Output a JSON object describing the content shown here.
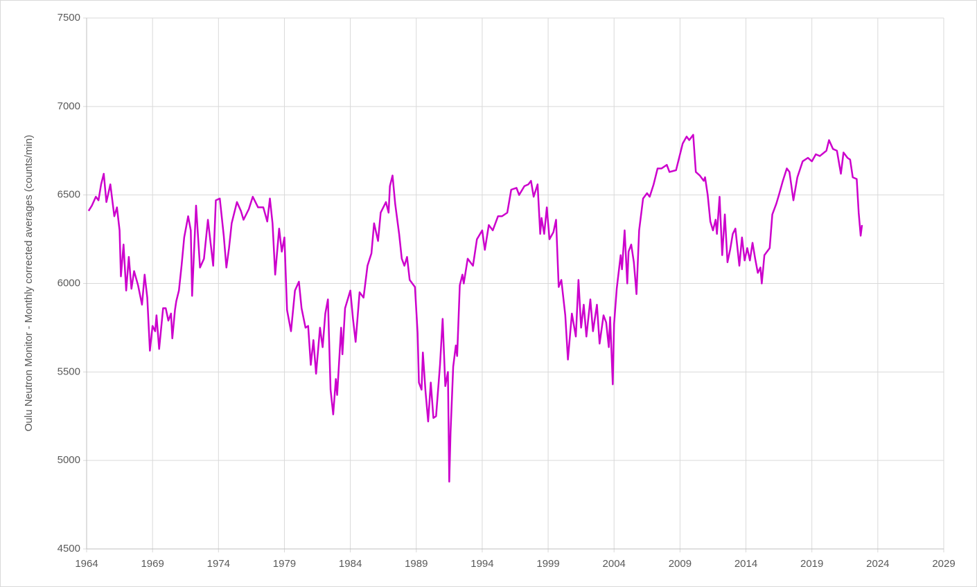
{
  "chart_data": {
    "type": "line",
    "y_label": "Oulu Neutron Monitor - Monthly corrected averages (counts/min)",
    "xlim": [
      1964,
      2029
    ],
    "xticks": [
      1964,
      1969,
      1974,
      1979,
      1984,
      1989,
      1994,
      1999,
      2004,
      2009,
      2014,
      2019,
      2024,
      2029
    ],
    "ylim": [
      4500,
      7500
    ],
    "yticks": [
      4500,
      5000,
      5500,
      6000,
      6500,
      7000,
      7500
    ],
    "grid": true,
    "x": [
      1964.15,
      1964.4,
      1964.7,
      1964.9,
      1965.1,
      1965.3,
      1965.5,
      1965.8,
      1966.1,
      1966.3,
      1966.5,
      1966.6,
      1966.8,
      1967.0,
      1967.2,
      1967.4,
      1967.6,
      1967.9,
      1968.2,
      1968.4,
      1968.6,
      1968.8,
      1969.0,
      1969.2,
      1969.3,
      1969.5,
      1969.8,
      1970.0,
      1970.2,
      1970.4,
      1970.5,
      1970.7,
      1970.8,
      1971.0,
      1971.2,
      1971.4,
      1971.7,
      1971.9,
      1972.0,
      1972.3,
      1972.6,
      1972.9,
      1973.2,
      1973.6,
      1973.8,
      1974.1,
      1974.4,
      1974.6,
      1974.8,
      1975.0,
      1975.4,
      1975.7,
      1975.9,
      1976.3,
      1976.6,
      1977.0,
      1977.4,
      1977.7,
      1977.9,
      1978.1,
      1978.3,
      1978.6,
      1978.8,
      1979.0,
      1979.2,
      1979.5,
      1979.8,
      1980.1,
      1980.3,
      1980.6,
      1980.8,
      1981.0,
      1981.2,
      1981.4,
      1981.7,
      1981.9,
      1982.1,
      1982.3,
      1982.5,
      1982.7,
      1982.9,
      1983.0,
      1983.3,
      1983.4,
      1983.6,
      1984.0,
      1984.2,
      1984.4,
      1984.7,
      1985.0,
      1985.3,
      1985.6,
      1985.8,
      1986.1,
      1986.3,
      1986.7,
      1986.9,
      1987.0,
      1987.2,
      1987.4,
      1987.7,
      1987.9,
      1988.1,
      1988.3,
      1988.5,
      1988.9,
      1989.1,
      1989.2,
      1989.4,
      1989.5,
      1989.7,
      1989.9,
      1990.1,
      1990.3,
      1990.5,
      1990.8,
      1991.0,
      1991.2,
      1991.4,
      1991.5,
      1991.6,
      1991.8,
      1992.0,
      1992.1,
      1992.3,
      1992.5,
      1992.6,
      1992.9,
      1993.3,
      1993.6,
      1994.0,
      1994.2,
      1994.5,
      1994.8,
      1995.2,
      1995.5,
      1995.9,
      1996.2,
      1996.6,
      1996.8,
      1997.2,
      1997.5,
      1997.7,
      1997.9,
      1998.2,
      1998.4,
      1998.5,
      1998.7,
      1998.9,
      1999.1,
      1999.4,
      1999.6,
      1999.8,
      2000.0,
      2000.3,
      2000.5,
      2000.8,
      2001.1,
      2001.3,
      2001.5,
      2001.7,
      2001.9,
      2002.2,
      2002.4,
      2002.7,
      2002.9,
      2003.2,
      2003.4,
      2003.6,
      2003.7,
      2003.9,
      2004.0,
      2004.2,
      2004.5,
      2004.6,
      2004.8,
      2005.0,
      2005.1,
      2005.3,
      2005.5,
      2005.7,
      2005.9,
      2006.2,
      2006.5,
      2006.7,
      2007.0,
      2007.3,
      2007.6,
      2008.0,
      2008.2,
      2008.7,
      2008.9,
      2009.2,
      2009.5,
      2009.7,
      2010.0,
      2010.2,
      2010.5,
      2010.8,
      2010.9,
      2011.1,
      2011.3,
      2011.5,
      2011.7,
      2011.8,
      2012.0,
      2012.2,
      2012.4,
      2012.6,
      2012.8,
      2013.0,
      2013.2,
      2013.5,
      2013.7,
      2013.9,
      2014.1,
      2014.3,
      2014.5,
      2014.7,
      2014.9,
      2015.1,
      2015.2,
      2015.4,
      2015.8,
      2016.0,
      2016.3,
      2016.5,
      2016.8,
      2017.1,
      2017.3,
      2017.6,
      2017.9,
      2018.3,
      2018.7,
      2019.0,
      2019.3,
      2019.6,
      2020.1,
      2020.3,
      2020.6,
      2020.9,
      2021.2,
      2021.4,
      2021.7,
      2021.9,
      2022.1,
      2022.4,
      2022.55,
      2022.7,
      2022.8
    ],
    "series": [
      {
        "name": "Oulu",
        "color": "#cc00cc",
        "values": [
          6410,
          6440,
          6490,
          6470,
          6560,
          6620,
          6460,
          6560,
          6380,
          6430,
          6300,
          6040,
          6220,
          5960,
          6150,
          5970,
          6070,
          5990,
          5880,
          6050,
          5920,
          5620,
          5760,
          5730,
          5820,
          5630,
          5860,
          5860,
          5790,
          5830,
          5690,
          5850,
          5900,
          5960,
          6100,
          6260,
          6380,
          6300,
          5930,
          6440,
          6090,
          6140,
          6360,
          6100,
          6470,
          6480,
          6270,
          6090,
          6200,
          6340,
          6460,
          6410,
          6360,
          6420,
          6490,
          6430,
          6430,
          6350,
          6480,
          6340,
          6050,
          6310,
          6180,
          6260,
          5850,
          5730,
          5960,
          6010,
          5860,
          5750,
          5760,
          5540,
          5680,
          5490,
          5750,
          5640,
          5830,
          5910,
          5400,
          5260,
          5460,
          5370,
          5750,
          5600,
          5860,
          5960,
          5800,
          5670,
          5950,
          5920,
          6100,
          6170,
          6340,
          6240,
          6400,
          6460,
          6400,
          6550,
          6610,
          6450,
          6280,
          6140,
          6100,
          6150,
          6020,
          5980,
          5720,
          5440,
          5400,
          5610,
          5390,
          5220,
          5440,
          5240,
          5250,
          5540,
          5800,
          5420,
          5500,
          4880,
          5160,
          5530,
          5650,
          5590,
          5990,
          6050,
          6000,
          6140,
          6100,
          6250,
          6300,
          6190,
          6330,
          6300,
          6380,
          6380,
          6400,
          6530,
          6540,
          6500,
          6550,
          6560,
          6580,
          6490,
          6560,
          6280,
          6370,
          6280,
          6430,
          6250,
          6290,
          6360,
          5980,
          6020,
          5820,
          5570,
          5830,
          5700,
          6020,
          5750,
          5880,
          5700,
          5910,
          5730,
          5880,
          5660,
          5820,
          5780,
          5640,
          5810,
          5430,
          5770,
          5970,
          6160,
          6080,
          6300,
          6000,
          6180,
          6220,
          6120,
          5940,
          6300,
          6480,
          6510,
          6490,
          6560,
          6650,
          6650,
          6670,
          6630,
          6640,
          6700,
          6790,
          6830,
          6810,
          6840,
          6630,
          6610,
          6580,
          6600,
          6500,
          6350,
          6300,
          6360,
          6280,
          6490,
          6160,
          6390,
          6120,
          6190,
          6280,
          6310,
          6100,
          6260,
          6130,
          6200,
          6130,
          6230,
          6140,
          6060,
          6090,
          6000,
          6160,
          6200,
          6390,
          6450,
          6500,
          6580,
          6650,
          6630,
          6470,
          6600,
          6690,
          6710,
          6690,
          6730,
          6720,
          6750,
          6810,
          6760,
          6750,
          6620,
          6740,
          6710,
          6700,
          6600,
          6590,
          6400,
          6270,
          6330
        ]
      }
    ]
  }
}
